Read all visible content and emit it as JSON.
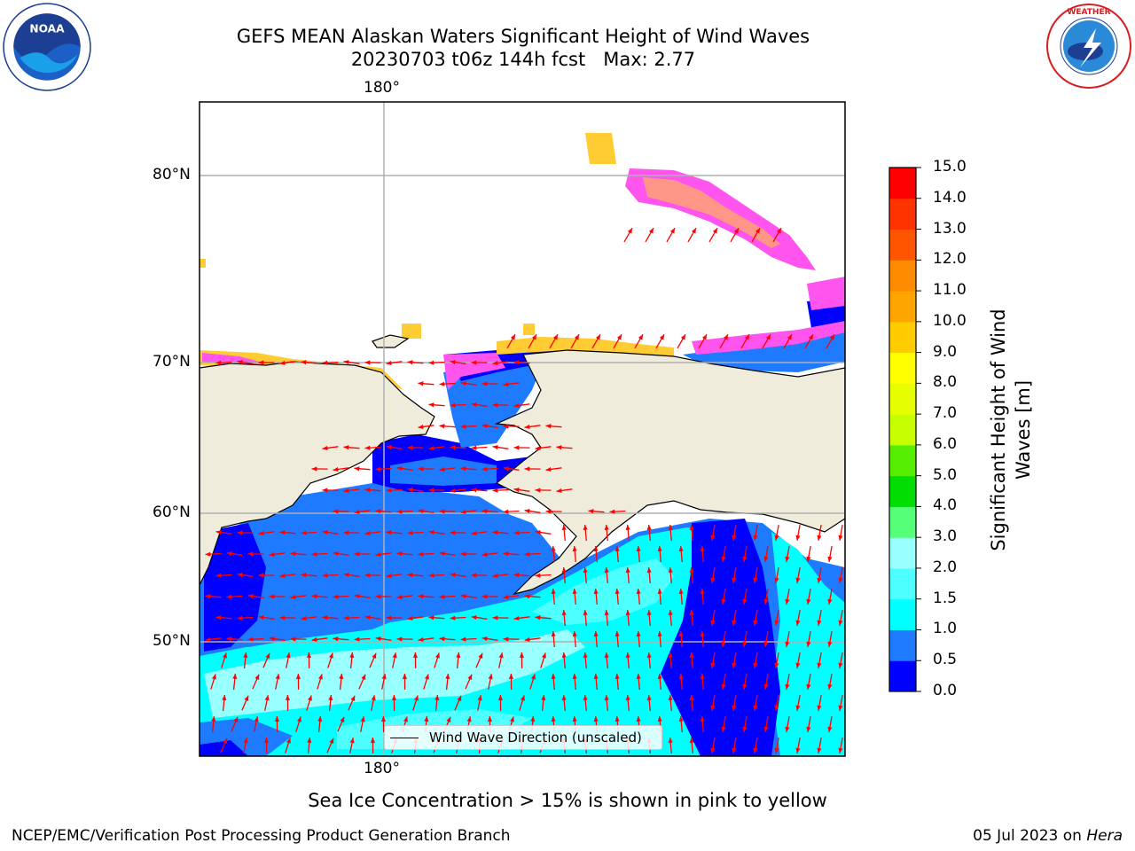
{
  "title": {
    "line1": "GEFS MEAN Alaskan Waters Significant Height of Wind Waves",
    "line2": "20230703 t06z 144h fcst   Max: 2.77"
  },
  "logos": {
    "left": "NOAA",
    "right": "NATIONAL WEATHER SERVICE"
  },
  "axes": {
    "lon_top": "180°",
    "lon_bottom": "180°",
    "lat_labels": [
      "80°N",
      "70°N",
      "60°N",
      "50°N"
    ]
  },
  "colorbar": {
    "title_line1": "Significant Height of Wind",
    "title_line2": "Waves [m]",
    "ticks": [
      "0.0",
      "0.5",
      "1.0",
      "1.5",
      "2.0",
      "3.0",
      "4.0",
      "5.0",
      "6.0",
      "7.0",
      "8.0",
      "9.0",
      "10.0",
      "11.0",
      "12.0",
      "13.0",
      "14.0",
      "15.0"
    ],
    "colors": [
      "#0000ff",
      "#1e7bff",
      "#00ffff",
      "#4dffff",
      "#99ffff",
      "#55ff77",
      "#00dd00",
      "#55ee00",
      "#c8ff00",
      "#e6ff00",
      "#ffff00",
      "#ffcc00",
      "#ffa500",
      "#ff8c00",
      "#ff5500",
      "#ff3300",
      "#ff0000"
    ]
  },
  "legend": {
    "label": "Wind Wave Direction (unscaled)"
  },
  "note": "Sea Ice Concentration > 15% is shown in pink to yellow",
  "footer": {
    "left": "NCEP/EMC/Verification Post Processing Product Generation Branch",
    "right_date": "05 Jul 2023 on ",
    "right_host": "Hera"
  },
  "colors": {
    "land": "#efecdc",
    "wave_low": "#0000ff",
    "wave_mid": "#1e7bff",
    "wave_high": "#00ffff",
    "wave_top": "#99ffff",
    "arrow": "#ff0000",
    "ice_pink": "#ff55ee",
    "ice_yellow": "#ffcc33",
    "grid": "#b0b0b0"
  }
}
